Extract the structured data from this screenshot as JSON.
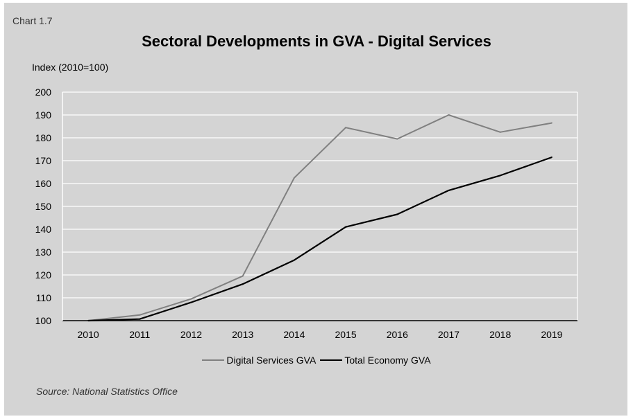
{
  "chart_label": "Chart 1.7",
  "source": "Source: National Statistics Office",
  "colors": {
    "panel_background": "#d4d4d4",
    "gridlines": "#ffffff",
    "digital_services": "#808080",
    "total_economy": "#000000"
  },
  "chart_data": {
    "type": "line",
    "title": "Sectoral Developments in GVA - Digital Services",
    "ylabel": "Index (2010=100)",
    "xlabel": "",
    "categories": [
      "2010",
      "2011",
      "2012",
      "2013",
      "2014",
      "2015",
      "2016",
      "2017",
      "2018",
      "2019"
    ],
    "ylim": [
      100,
      200
    ],
    "yticks": [
      100,
      110,
      120,
      130,
      140,
      150,
      160,
      170,
      180,
      190,
      200
    ],
    "grid": true,
    "legend_position": "bottom",
    "series": [
      {
        "name": "Digital Services GVA",
        "color": "#808080",
        "values": [
          100,
          102.5,
          109.5,
          119.5,
          162.5,
          184.5,
          179.5,
          190,
          182.5,
          186.5
        ]
      },
      {
        "name": "Total Economy GVA",
        "color": "#000000",
        "values": [
          100,
          100.7,
          108,
          116,
          126.5,
          141,
          146.5,
          157,
          163.5,
          171.5
        ]
      }
    ]
  }
}
